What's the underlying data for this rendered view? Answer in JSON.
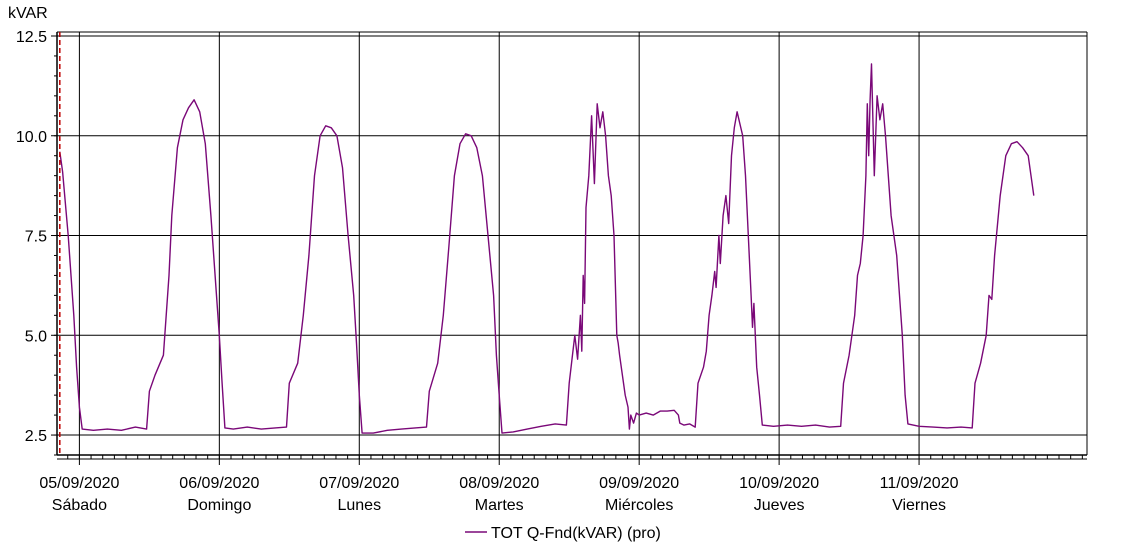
{
  "chart_data": {
    "type": "line",
    "ylabel": "kVAR",
    "ylim": [
      2.0,
      12.6
    ],
    "yticks": [
      "2.5",
      "5.0",
      "7.5",
      "10.0",
      "12.5"
    ],
    "ytick_values": [
      2.5,
      5.0,
      7.5,
      10.0,
      12.5
    ],
    "xlim": [
      -0.16,
      7.2
    ],
    "x_unit": "days since 05/09/2020 00:00",
    "xticks": [
      {
        "x": 0,
        "date": "05/09/2020",
        "day": "Sábado"
      },
      {
        "x": 1,
        "date": "06/09/2020",
        "day": "Domingo"
      },
      {
        "x": 2,
        "date": "07/09/2020",
        "day": "Lunes"
      },
      {
        "x": 3,
        "date": "08/09/2020",
        "day": "Martes"
      },
      {
        "x": 4,
        "date": "09/09/2020",
        "day": "Miércoles"
      },
      {
        "x": 5,
        "date": "10/09/2020",
        "day": "Jueves"
      },
      {
        "x": 6,
        "date": "11/09/2020",
        "day": "Viernes"
      }
    ],
    "cursor_x": -0.14,
    "grid": true,
    "legend_position": "bottom-center",
    "colors": {
      "series": "#7a0878",
      "cursor": "#c00000",
      "grid": "#000000"
    },
    "series": [
      {
        "name": "TOT Q-Fnd(kVAR) (pro)",
        "points": [
          [
            -0.14,
            9.6
          ],
          [
            -0.12,
            9.1
          ],
          [
            -0.08,
            7.5
          ],
          [
            -0.04,
            5.5
          ],
          [
            -0.02,
            4.2
          ],
          [
            0.0,
            3.2
          ],
          [
            0.02,
            2.65
          ],
          [
            0.1,
            2.62
          ],
          [
            0.2,
            2.65
          ],
          [
            0.3,
            2.62
          ],
          [
            0.4,
            2.7
          ],
          [
            0.48,
            2.65
          ],
          [
            0.5,
            3.6
          ],
          [
            0.54,
            4.0
          ],
          [
            0.6,
            4.5
          ],
          [
            0.64,
            6.5
          ],
          [
            0.66,
            8.0
          ],
          [
            0.7,
            9.7
          ],
          [
            0.74,
            10.4
          ],
          [
            0.78,
            10.7
          ],
          [
            0.82,
            10.9
          ],
          [
            0.86,
            10.6
          ],
          [
            0.9,
            9.8
          ],
          [
            0.94,
            8.0
          ],
          [
            0.98,
            6.0
          ],
          [
            1.0,
            5.0
          ],
          [
            1.02,
            3.8
          ],
          [
            1.04,
            2.68
          ],
          [
            1.1,
            2.65
          ],
          [
            1.2,
            2.7
          ],
          [
            1.3,
            2.65
          ],
          [
            1.4,
            2.68
          ],
          [
            1.48,
            2.7
          ],
          [
            1.5,
            3.8
          ],
          [
            1.56,
            4.3
          ],
          [
            1.6,
            5.5
          ],
          [
            1.64,
            7.0
          ],
          [
            1.68,
            9.0
          ],
          [
            1.72,
            10.0
          ],
          [
            1.76,
            10.25
          ],
          [
            1.8,
            10.2
          ],
          [
            1.84,
            10.0
          ],
          [
            1.88,
            9.2
          ],
          [
            1.92,
            7.5
          ],
          [
            1.96,
            6.0
          ],
          [
            1.98,
            4.8
          ],
          [
            2.0,
            3.5
          ],
          [
            2.02,
            2.55
          ],
          [
            2.1,
            2.55
          ],
          [
            2.2,
            2.62
          ],
          [
            2.3,
            2.65
          ],
          [
            2.4,
            2.68
          ],
          [
            2.48,
            2.7
          ],
          [
            2.5,
            3.6
          ],
          [
            2.56,
            4.3
          ],
          [
            2.6,
            5.5
          ],
          [
            2.64,
            7.2
          ],
          [
            2.68,
            9.0
          ],
          [
            2.72,
            9.8
          ],
          [
            2.76,
            10.05
          ],
          [
            2.8,
            10.0
          ],
          [
            2.84,
            9.7
          ],
          [
            2.88,
            9.0
          ],
          [
            2.92,
            7.5
          ],
          [
            2.96,
            6.0
          ],
          [
            2.98,
            4.5
          ],
          [
            3.0,
            3.5
          ],
          [
            3.02,
            2.55
          ],
          [
            3.1,
            2.58
          ],
          [
            3.2,
            2.65
          ],
          [
            3.3,
            2.72
          ],
          [
            3.4,
            2.78
          ],
          [
            3.48,
            2.75
          ],
          [
            3.5,
            3.8
          ],
          [
            3.52,
            4.4
          ],
          [
            3.54,
            5.0
          ],
          [
            3.56,
            4.4
          ],
          [
            3.58,
            5.5
          ],
          [
            3.59,
            4.6
          ],
          [
            3.6,
            6.5
          ],
          [
            3.61,
            5.8
          ],
          [
            3.62,
            8.2
          ],
          [
            3.64,
            9.0
          ],
          [
            3.66,
            10.5
          ],
          [
            3.68,
            8.8
          ],
          [
            3.7,
            10.8
          ],
          [
            3.72,
            10.2
          ],
          [
            3.74,
            10.6
          ],
          [
            3.76,
            10.0
          ],
          [
            3.78,
            9.0
          ],
          [
            3.8,
            8.5
          ],
          [
            3.82,
            7.5
          ],
          [
            3.84,
            5.0
          ],
          [
            3.85,
            4.8
          ],
          [
            3.86,
            4.5
          ],
          [
            3.88,
            4.0
          ],
          [
            3.9,
            3.5
          ],
          [
            3.92,
            3.2
          ],
          [
            3.93,
            2.65
          ],
          [
            3.94,
            3.0
          ],
          [
            3.96,
            2.8
          ],
          [
            3.98,
            3.05
          ],
          [
            4.0,
            3.0
          ],
          [
            4.05,
            3.05
          ],
          [
            4.1,
            3.0
          ],
          [
            4.15,
            3.1
          ],
          [
            4.2,
            3.1
          ],
          [
            4.25,
            3.12
          ],
          [
            4.28,
            3.0
          ],
          [
            4.29,
            2.8
          ],
          [
            4.32,
            2.75
          ],
          [
            4.36,
            2.78
          ],
          [
            4.4,
            2.7
          ],
          [
            4.42,
            3.8
          ],
          [
            4.46,
            4.2
          ],
          [
            4.48,
            4.6
          ],
          [
            4.5,
            5.5
          ],
          [
            4.52,
            6.0
          ],
          [
            4.54,
            6.6
          ],
          [
            4.55,
            6.2
          ],
          [
            4.57,
            7.5
          ],
          [
            4.58,
            6.8
          ],
          [
            4.6,
            8.0
          ],
          [
            4.62,
            8.5
          ],
          [
            4.64,
            7.8
          ],
          [
            4.66,
            9.5
          ],
          [
            4.68,
            10.2
          ],
          [
            4.7,
            10.6
          ],
          [
            4.72,
            10.3
          ],
          [
            4.74,
            10.0
          ],
          [
            4.76,
            9.0
          ],
          [
            4.78,
            7.5
          ],
          [
            4.8,
            6.0
          ],
          [
            4.81,
            5.2
          ],
          [
            4.82,
            5.8
          ],
          [
            4.84,
            4.2
          ],
          [
            4.86,
            3.5
          ],
          [
            4.88,
            2.75
          ],
          [
            4.96,
            2.72
          ],
          [
            5.06,
            2.75
          ],
          [
            5.16,
            2.72
          ],
          [
            5.26,
            2.75
          ],
          [
            5.36,
            2.7
          ],
          [
            5.44,
            2.72
          ],
          [
            5.46,
            3.8
          ],
          [
            5.5,
            4.5
          ],
          [
            5.54,
            5.5
          ],
          [
            5.56,
            6.5
          ],
          [
            5.58,
            6.8
          ],
          [
            5.6,
            7.5
          ],
          [
            5.62,
            9.0
          ],
          [
            5.63,
            10.8
          ],
          [
            5.64,
            9.5
          ],
          [
            5.65,
            10.9
          ],
          [
            5.66,
            11.8
          ],
          [
            5.68,
            9.0
          ],
          [
            5.7,
            11.0
          ],
          [
            5.72,
            10.4
          ],
          [
            5.74,
            10.8
          ],
          [
            5.76,
            10.0
          ],
          [
            5.78,
            9.0
          ],
          [
            5.8,
            8.0
          ],
          [
            5.84,
            7.0
          ],
          [
            5.88,
            5.0
          ],
          [
            5.9,
            3.5
          ],
          [
            5.92,
            2.78
          ],
          [
            6.0,
            2.72
          ],
          [
            6.1,
            2.7
          ],
          [
            6.2,
            2.68
          ],
          [
            6.3,
            2.7
          ],
          [
            6.38,
            2.68
          ],
          [
            6.4,
            3.8
          ],
          [
            6.44,
            4.3
          ],
          [
            6.48,
            5.0
          ],
          [
            6.5,
            6.0
          ],
          [
            6.52,
            5.9
          ],
          [
            6.54,
            7.0
          ],
          [
            6.58,
            8.5
          ],
          [
            6.62,
            9.5
          ],
          [
            6.66,
            9.8
          ],
          [
            6.7,
            9.85
          ],
          [
            6.74,
            9.7
          ],
          [
            6.78,
            9.5
          ],
          [
            6.8,
            9.0
          ],
          [
            6.82,
            8.5
          ]
        ]
      }
    ]
  }
}
